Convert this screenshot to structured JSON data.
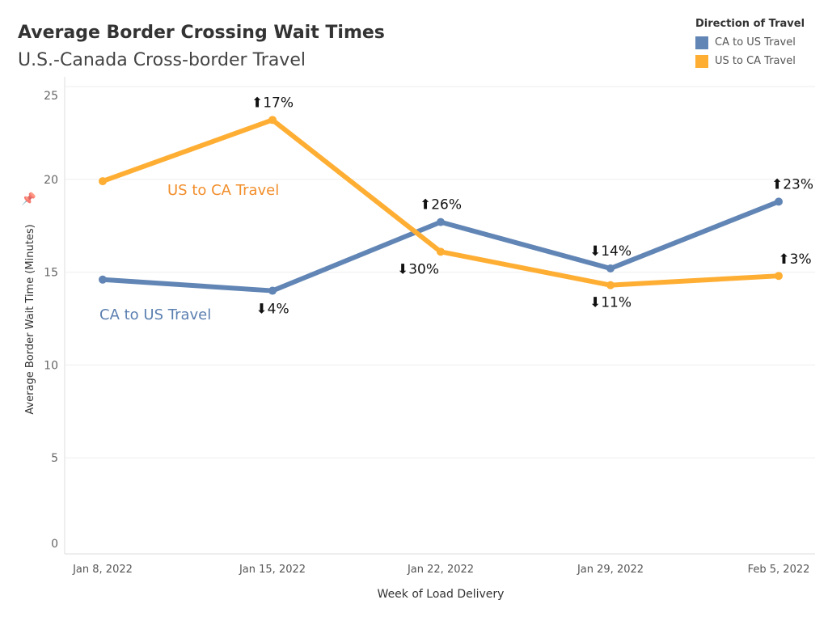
{
  "chart_data": {
    "type": "line",
    "title": "Average Border Crossing Wait Times",
    "subtitle": "U.S.-Canada Cross-border Travel",
    "xlabel": "Week of Load Delivery",
    "ylabel": "Average Border Wait Time (Minutes)",
    "categories": [
      "Jan 8, 2022",
      "Jan 15, 2022",
      "Jan 22, 2022",
      "Jan 29, 2022",
      "Feb 5, 2022"
    ],
    "ylim": [
      0,
      25
    ],
    "yticks": [
      0,
      5,
      10,
      15,
      20,
      25
    ],
    "grid": true,
    "legend": {
      "title": "Direction of Travel",
      "placement": "top-right"
    },
    "series": [
      {
        "name": "CA to US Travel",
        "color": "#6185B5",
        "label_color": "#5B7FB0",
        "values": [
          14.6,
          14.0,
          17.7,
          15.2,
          18.8
        ],
        "annotations": [
          null,
          {
            "dir": "down",
            "text": "4%"
          },
          {
            "dir": "up",
            "text": "26%"
          },
          {
            "dir": "down",
            "text": "14%"
          },
          {
            "dir": "up",
            "text": "23%"
          }
        ]
      },
      {
        "name": "US to CA Travel",
        "color": "#FFAE34",
        "label_color": "#F28E2B",
        "values": [
          19.9,
          23.2,
          16.1,
          14.3,
          14.8
        ],
        "annotations": [
          null,
          {
            "dir": "up",
            "text": "17%"
          },
          {
            "dir": "down",
            "text": "30%"
          },
          {
            "dir": "down",
            "text": "11%"
          },
          {
            "dir": "up",
            "text": "3%"
          }
        ]
      }
    ]
  }
}
